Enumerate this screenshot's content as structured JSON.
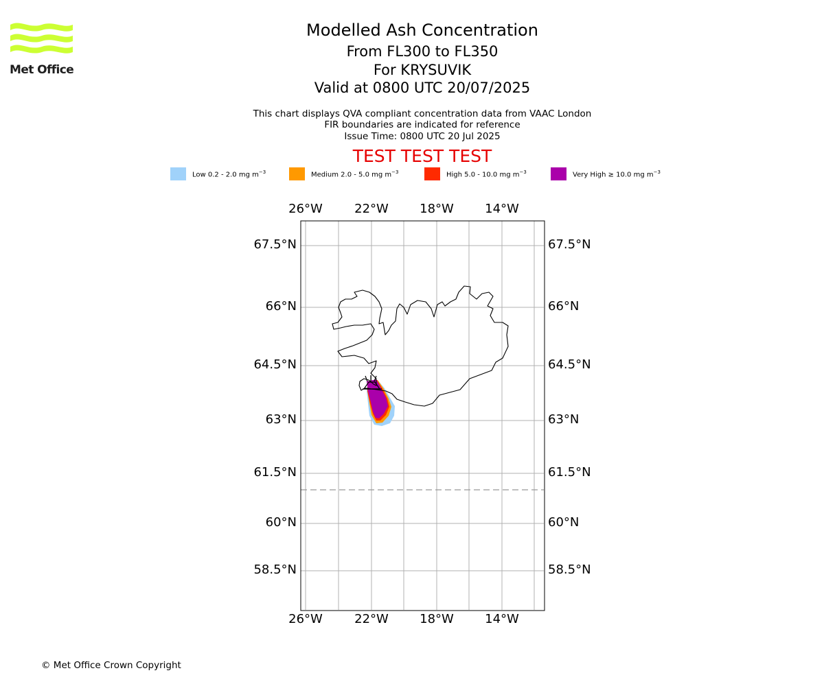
{
  "logo": {
    "text": "Met Office",
    "color": "#ccff33"
  },
  "title": {
    "main": "Modelled Ash Concentration",
    "levels": "From FL300 to FL350",
    "volcano": "For KRYSUVIK",
    "valid": "Valid at 0800 UTC 20/07/2025"
  },
  "description": {
    "line1": "This chart displays QVA compliant concentration data from VAAC London",
    "line2": "FIR boundaries are indicated for reference",
    "line3": "Issue Time: 0800 UTC 20 Jul 2025"
  },
  "test_banner": "TEST TEST TEST",
  "legend": [
    {
      "label": "Low 0.2 - 2.0 mg m",
      "unit_exp": "−3",
      "color": "#a0d2fa"
    },
    {
      "label": "Medium 2.0 - 5.0 mg m",
      "unit_exp": "−3",
      "color": "#ff9900"
    },
    {
      "label": "High 5.0 - 10.0 mg m",
      "unit_exp": "−3",
      "color": "#ff2a00"
    },
    {
      "label": "Very High  ≥  10.0 mg m",
      "unit_exp": "−3",
      "color": "#aa00aa"
    }
  ],
  "map": {
    "longitude_ticks": [
      "26°W",
      "22°W",
      "18°W",
      "14°W"
    ],
    "latitude_ticks": [
      "67.5°N",
      "66°N",
      "64.5°N",
      "63°N",
      "61.5°N",
      "60°N",
      "58.5°N"
    ],
    "volcano_symbol": "volcano-icon",
    "fir_boundary_latitude": 61
  },
  "copyright": "© Met Office Crown Copyright"
}
